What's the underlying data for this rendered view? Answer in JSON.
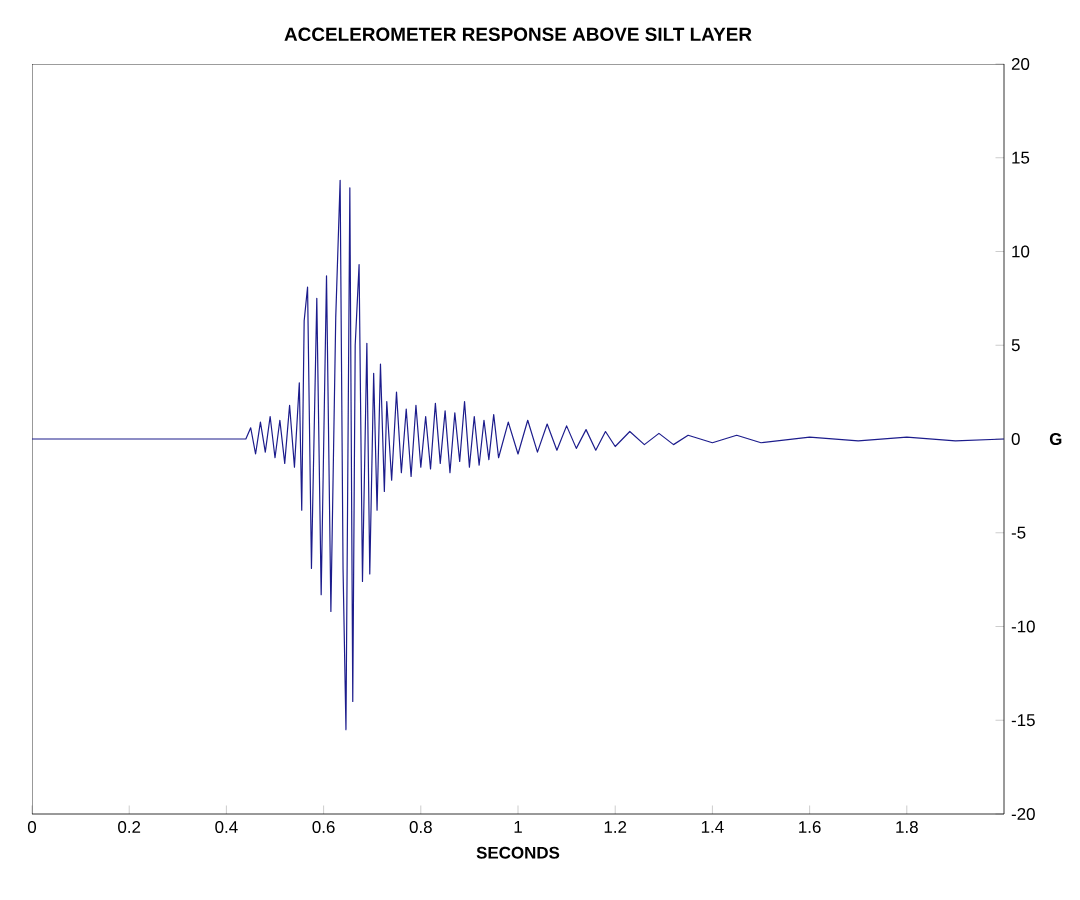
{
  "chart_data": {
    "type": "line",
    "title": "ACCELEROMETER RESPONSE ABOVE SILT LAYER",
    "xlabel": "SECONDS",
    "ylabel": "G",
    "xlim": [
      0,
      2
    ],
    "xticks": [
      0,
      0.2,
      0.4,
      0.6,
      0.8,
      1,
      1.2,
      1.4,
      1.6,
      1.8
    ],
    "ylim": [
      -20,
      20
    ],
    "yticks": [
      -20,
      -15,
      -10,
      -5,
      0,
      5,
      10,
      15,
      20
    ],
    "grid": false,
    "marker": "none",
    "line_style": "solid",
    "x": [
      0,
      0.44,
      0.45,
      0.46,
      0.47,
      0.48,
      0.49,
      0.5,
      0.51,
      0.52,
      0.53,
      0.54,
      0.55,
      0.555,
      0.56,
      0.567,
      0.575,
      0.586,
      0.595,
      0.606,
      0.615,
      0.625,
      0.634,
      0.64,
      0.646,
      0.654,
      0.66,
      0.665,
      0.673,
      0.68,
      0.689,
      0.695,
      0.703,
      0.71,
      0.717,
      0.725,
      0.73,
      0.74,
      0.75,
      0.76,
      0.77,
      0.78,
      0.79,
      0.8,
      0.81,
      0.82,
      0.83,
      0.84,
      0.85,
      0.86,
      0.87,
      0.88,
      0.89,
      0.9,
      0.91,
      0.92,
      0.93,
      0.94,
      0.95,
      0.96,
      0.98,
      1,
      1.02,
      1.04,
      1.06,
      1.08,
      1.1,
      1.12,
      1.14,
      1.16,
      1.18,
      1.2,
      1.23,
      1.26,
      1.29,
      1.32,
      1.35,
      1.4,
      1.45,
      1.5,
      1.6,
      1.7,
      1.8,
      1.9,
      2
    ],
    "values": [
      0,
      0,
      0.6,
      -0.8,
      0.9,
      -0.7,
      1.2,
      -1.0,
      1.0,
      -1.3,
      1.8,
      -1.5,
      3.0,
      -3.8,
      6.3,
      8.1,
      -6.9,
      7.5,
      -8.3,
      8.7,
      -9.2,
      6.5,
      13.8,
      -6.9,
      -15.5,
      13.4,
      -14.0,
      5.0,
      9.3,
      -7.6,
      5.1,
      -7.2,
      3.5,
      -3.8,
      4.0,
      -2.8,
      2.0,
      -2.2,
      2.5,
      -1.8,
      1.6,
      -2.0,
      1.8,
      -1.5,
      1.2,
      -1.6,
      1.9,
      -1.3,
      1.5,
      -1.8,
      1.4,
      -1.2,
      2.0,
      -1.5,
      1.2,
      -1.4,
      1.0,
      -1.1,
      1.3,
      -1.0,
      0.9,
      -0.8,
      1.0,
      -0.7,
      0.8,
      -0.6,
      0.7,
      -0.5,
      0.5,
      -0.6,
      0.4,
      -0.4,
      0.4,
      -0.3,
      0.3,
      -0.3,
      0.2,
      -0.2,
      0.2,
      -0.2,
      0.1,
      -0.1,
      0.1,
      -0.1,
      0
    ],
    "color": "#1c1c8c"
  }
}
